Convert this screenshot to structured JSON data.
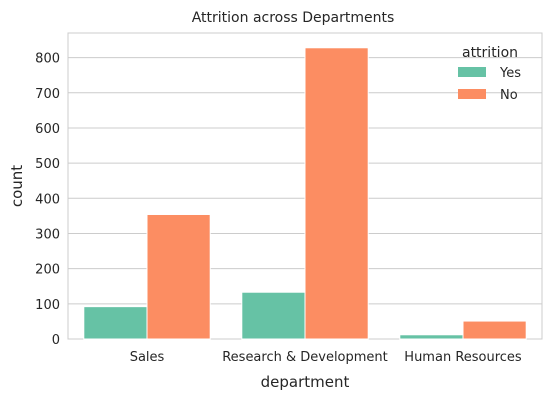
{
  "chart_data": {
    "type": "bar",
    "title": "Attrition across Departments",
    "xlabel": "department",
    "ylabel": "count",
    "categories": [
      "Sales",
      "Research & Development",
      "Human Resources"
    ],
    "series": [
      {
        "name": "Yes",
        "values": [
          92,
          133,
          12
        ],
        "color": "#66c2a5"
      },
      {
        "name": "No",
        "values": [
          354,
          828,
          51
        ],
        "color": "#fc8d62"
      }
    ],
    "ylim": [
      0,
      870
    ],
    "yticks": [
      0,
      100,
      200,
      300,
      400,
      500,
      600,
      700,
      800
    ],
    "grid": true,
    "legend": {
      "title": "attrition",
      "placement": "top-right"
    }
  }
}
